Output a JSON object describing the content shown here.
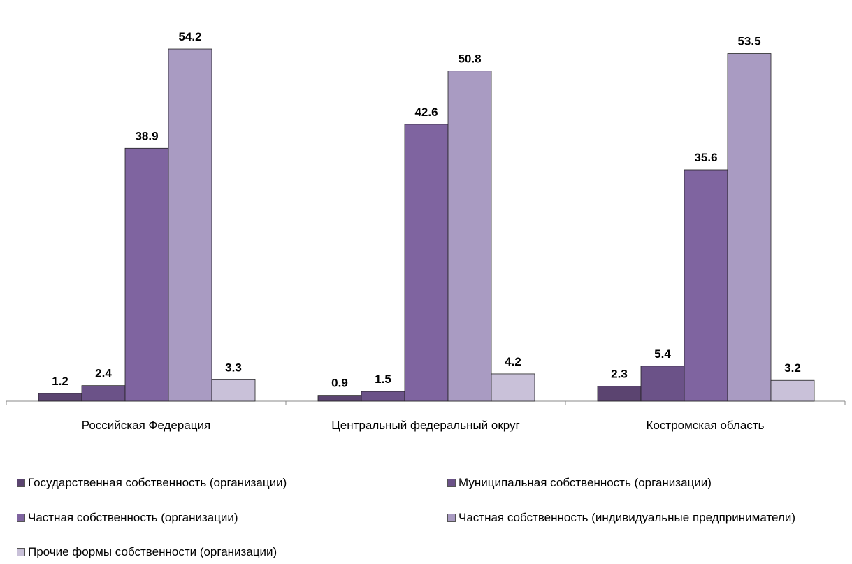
{
  "chart_data": {
    "type": "bar",
    "categories": [
      "Российская Федерация",
      "Центральный федеральный округ",
      "Костромская область"
    ],
    "series": [
      {
        "name": "Государственная собственность (организации)",
        "values": [
          1.2,
          0.9,
          2.3
        ],
        "color": "#5b4470"
      },
      {
        "name": "Муниципальная собственность (организации)",
        "values": [
          2.4,
          1.5,
          5.4
        ],
        "color": "#6b5288"
      },
      {
        "name": "Частная собственность (организации)",
        "values": [
          38.9,
          42.6,
          35.6
        ],
        "color": "#7f64a0"
      },
      {
        "name": "Частная собственность (индивидуальные предприниматели)",
        "values": [
          54.2,
          50.8,
          53.5
        ],
        "color": "#a99bc2"
      },
      {
        "name": "Прочие формы собственности (организации)",
        "values": [
          3.3,
          4.2,
          3.2
        ],
        "color": "#c9c1d9"
      }
    ],
    "title": "",
    "xlabel": "",
    "ylabel": "",
    "ylim": [
      0,
      57
    ],
    "grid": false,
    "legend_position": "bottom"
  }
}
